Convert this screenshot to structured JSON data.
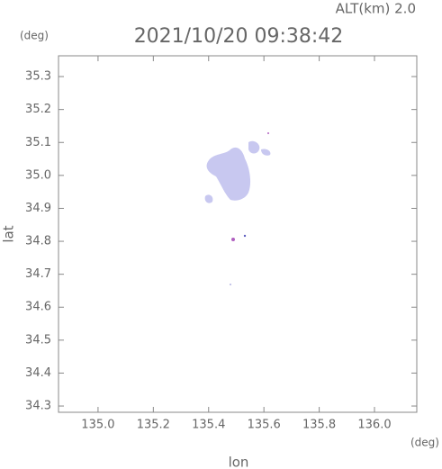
{
  "chart_data": {
    "type": "map",
    "title": "2021/10/20 09:38:42",
    "altitude_label": "ALT(km) 2.0",
    "y_unit": "(deg)",
    "x_unit": "(deg)",
    "x_label": "lon",
    "y_label": "lat",
    "xlim": [
      134.857,
      136.153
    ],
    "ylim": [
      34.281,
      35.363
    ],
    "xticks": [
      {
        "value": 135,
        "label": "135.0"
      },
      135.2,
      135.4,
      135.6,
      135.8,
      {
        "value": 136,
        "label": "136.0"
      }
    ],
    "yticks": [
      34.3,
      34.4,
      34.5,
      34.6,
      34.7,
      34.8,
      34.9,
      {
        "value": 35,
        "label": "35.0"
      },
      35.1,
      35.2,
      35.3
    ]
  }
}
